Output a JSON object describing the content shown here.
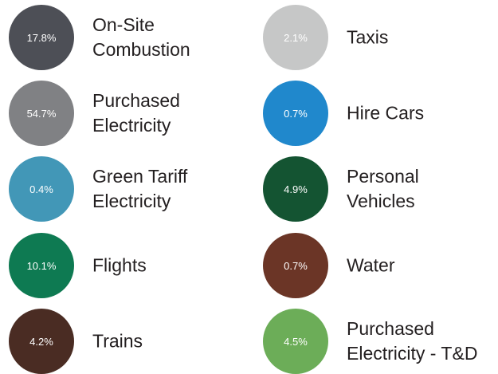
{
  "chart_data": {
    "type": "legend",
    "categories": [
      "On-Site Combustion",
      "Purchased Electricity",
      "Green Tariff Electricity",
      "Flights",
      "Trains",
      "Taxis",
      "Hire Cars",
      "Personal Vehicles",
      "Water",
      "Purchased Electricity - T&D"
    ],
    "values": [
      17.8,
      54.7,
      0.4,
      10.1,
      4.2,
      2.1,
      0.7,
      4.9,
      0.7,
      4.5
    ],
    "value_labels": [
      "17.8%",
      "54.7%",
      "0.4%",
      "10.1%",
      "4.2%",
      "2.1%",
      "0.7%",
      "4.9%",
      "0.7%",
      "4.5%"
    ],
    "colors": [
      "#4d4f56",
      "#808184",
      "#4297b7",
      "#0e7a52",
      "#4a2c23",
      "#c6c7c7",
      "#2088cc",
      "#145432",
      "#6b3526",
      "#6cad58"
    ]
  }
}
